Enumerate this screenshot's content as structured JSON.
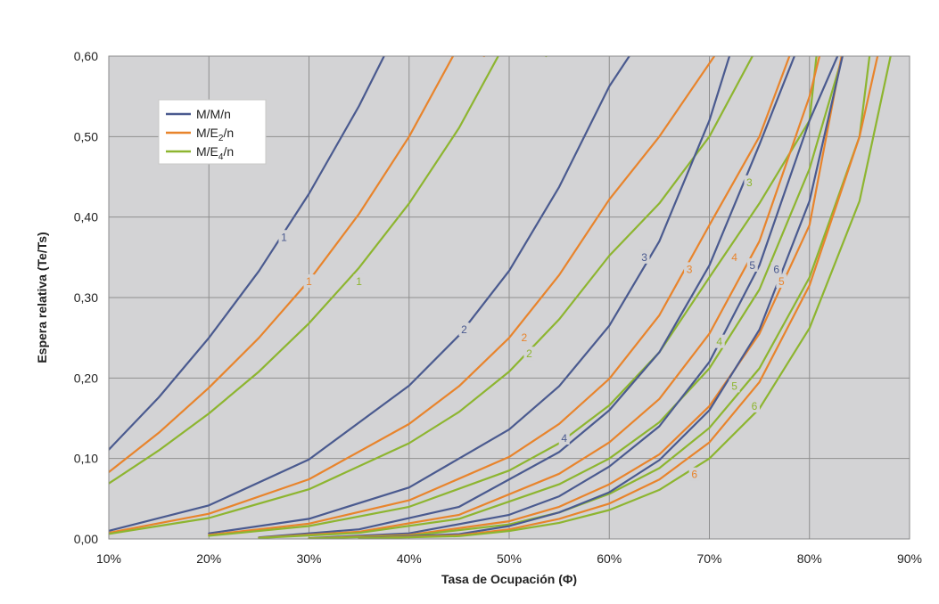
{
  "chart_data": {
    "type": "line",
    "xlabel": "Tasa de Ocupación (Φ)",
    "ylabel": "Espera relativa (Te/Ts)",
    "xlim": [
      10,
      90
    ],
    "ylim": [
      0,
      0.6
    ],
    "x_ticks": [
      "10%",
      "20%",
      "30%",
      "40%",
      "50%",
      "60%",
      "70%",
      "80%",
      "90%"
    ],
    "y_ticks": [
      "0,00",
      "0,10",
      "0,20",
      "0,30",
      "0,40",
      "0,50",
      "0,60"
    ],
    "grid": true,
    "legend_position": "top-left",
    "legend": [
      {
        "text": "M/M/n",
        "sub": "",
        "after": "",
        "color": "#4a5a8f"
      },
      {
        "text": "M/E",
        "sub": "2",
        "after": "/n",
        "color": "#e8842c"
      },
      {
        "text": "M/E",
        "sub": "4",
        "after": "/n",
        "color": "#8db530"
      }
    ],
    "series": [
      {
        "name": "M/M/n",
        "n": "1",
        "color": "#4a5a8f",
        "x": [
          10,
          15,
          20,
          25,
          30,
          35,
          37.5
        ],
        "y": [
          0.111,
          0.176,
          0.25,
          0.333,
          0.429,
          0.538,
          0.6
        ]
      },
      {
        "name": "M/E2/n",
        "n": "1",
        "color": "#e8842c",
        "x": [
          10,
          15,
          20,
          25,
          30,
          35,
          40,
          45,
          47.5
        ],
        "y": [
          0.083,
          0.132,
          0.188,
          0.25,
          0.321,
          0.404,
          0.5,
          0.614,
          0.6
        ]
      },
      {
        "name": "M/E4/n",
        "n": "1",
        "color": "#8db530",
        "x": [
          10,
          15,
          20,
          25,
          30,
          35,
          40,
          45,
          50,
          53.7
        ],
        "y": [
          0.069,
          0.11,
          0.156,
          0.208,
          0.268,
          0.337,
          0.417,
          0.511,
          0.625,
          0.6
        ]
      },
      {
        "name": "M/M/n",
        "n": "2",
        "color": "#4a5a8f",
        "x": [
          10,
          20,
          30,
          40,
          45,
          50,
          55,
          60,
          62
        ],
        "y": [
          0.0101,
          0.0417,
          0.0989,
          0.1905,
          0.2532,
          0.3333,
          0.4375,
          0.5625,
          0.6
        ]
      },
      {
        "name": "M/E2/n",
        "n": "2",
        "color": "#e8842c",
        "x": [
          10,
          20,
          30,
          40,
          45,
          50,
          55,
          60,
          65,
          70.5
        ],
        "y": [
          0.0076,
          0.0313,
          0.0742,
          0.1429,
          0.19,
          0.25,
          0.328,
          0.422,
          0.5,
          0.6
        ]
      },
      {
        "name": "M/E4/n",
        "n": "2",
        "color": "#8db530",
        "x": [
          10,
          20,
          30,
          40,
          45,
          50,
          55,
          60,
          65,
          70,
          74.3
        ],
        "y": [
          0.0063,
          0.026,
          0.0618,
          0.119,
          0.158,
          0.208,
          0.273,
          0.352,
          0.417,
          0.5,
          0.6
        ]
      },
      {
        "name": "M/M/n",
        "n": "3",
        "color": "#4a5a8f",
        "x": [
          20,
          30,
          40,
          50,
          55,
          60,
          65,
          70,
          72
        ],
        "y": [
          0.007,
          0.025,
          0.064,
          0.136,
          0.19,
          0.265,
          0.37,
          0.52,
          0.6
        ]
      },
      {
        "name": "M/E2/n",
        "n": "3",
        "color": "#e8842c",
        "x": [
          20,
          30,
          40,
          50,
          55,
          60,
          65,
          70,
          75,
          78
        ],
        "y": [
          0.005,
          0.019,
          0.048,
          0.102,
          0.143,
          0.199,
          0.278,
          0.39,
          0.5,
          0.6
        ]
      },
      {
        "name": "M/E4/n",
        "n": "3",
        "color": "#8db530",
        "x": [
          20,
          30,
          40,
          50,
          55,
          60,
          65,
          70,
          75,
          80,
          80.7
        ],
        "y": [
          0.004,
          0.016,
          0.04,
          0.085,
          0.119,
          0.166,
          0.232,
          0.325,
          0.417,
          0.52,
          0.6
        ]
      },
      {
        "name": "M/M/n",
        "n": "4",
        "color": "#4a5a8f",
        "x": [
          25,
          35,
          45,
          55,
          60,
          65,
          70,
          75,
          78.5
        ],
        "y": [
          0.002,
          0.012,
          0.04,
          0.108,
          0.16,
          0.232,
          0.34,
          0.49,
          0.6
        ]
      },
      {
        "name": "M/E2/n",
        "n": "4",
        "color": "#e8842c",
        "x": [
          25,
          35,
          45,
          55,
          60,
          65,
          70,
          75,
          80,
          81
        ],
        "y": [
          0.0015,
          0.009,
          0.03,
          0.081,
          0.12,
          0.174,
          0.255,
          0.37,
          0.55,
          0.6
        ]
      },
      {
        "name": "M/E4/n",
        "n": "4",
        "color": "#8db530",
        "x": [
          25,
          35,
          45,
          55,
          60,
          65,
          70,
          75,
          80,
          83.3
        ],
        "y": [
          0.0012,
          0.0075,
          0.025,
          0.068,
          0.1,
          0.145,
          0.212,
          0.31,
          0.46,
          0.6
        ]
      },
      {
        "name": "M/M/n",
        "n": "5",
        "color": "#4a5a8f",
        "x": [
          30,
          40,
          50,
          55,
          60,
          65,
          70,
          75,
          80,
          82.8
        ],
        "y": [
          0.001,
          0.007,
          0.03,
          0.053,
          0.09,
          0.14,
          0.22,
          0.34,
          0.52,
          0.6
        ]
      },
      {
        "name": "M/E2/n",
        "n": "5",
        "color": "#e8842c",
        "x": [
          30,
          40,
          50,
          55,
          60,
          65,
          70,
          75,
          80,
          83.2
        ],
        "y": [
          0.0008,
          0.005,
          0.022,
          0.04,
          0.068,
          0.105,
          0.165,
          0.255,
          0.39,
          0.6
        ]
      },
      {
        "name": "M/E4/n",
        "n": "5",
        "color": "#8db530",
        "x": [
          30,
          40,
          50,
          55,
          60,
          65,
          70,
          75,
          80,
          85,
          86
        ],
        "y": [
          0.0006,
          0.004,
          0.018,
          0.033,
          0.056,
          0.088,
          0.138,
          0.212,
          0.325,
          0.5,
          0.6
        ]
      },
      {
        "name": "M/M/n",
        "n": "6",
        "color": "#4a5a8f",
        "x": [
          35,
          45,
          50,
          55,
          60,
          65,
          70,
          75,
          80,
          83.3
        ],
        "y": [
          0.001,
          0.006,
          0.016,
          0.033,
          0.058,
          0.098,
          0.16,
          0.26,
          0.42,
          0.6
        ]
      },
      {
        "name": "M/E2/n",
        "n": "6",
        "color": "#e8842c",
        "x": [
          35,
          45,
          50,
          55,
          60,
          65,
          70,
          75,
          80,
          85,
          86.8
        ],
        "y": [
          0.0008,
          0.0045,
          0.012,
          0.025,
          0.044,
          0.074,
          0.12,
          0.195,
          0.315,
          0.5,
          0.6
        ]
      },
      {
        "name": "M/E4/n",
        "n": "6",
        "color": "#8db530",
        "x": [
          35,
          45,
          50,
          55,
          60,
          65,
          70,
          75,
          80,
          85,
          88.1
        ],
        "y": [
          0.0006,
          0.0035,
          0.01,
          0.02,
          0.036,
          0.061,
          0.1,
          0.162,
          0.262,
          0.42,
          0.6
        ]
      }
    ],
    "curve_labels": [
      {
        "text": "1",
        "color": "#4a5a8f",
        "x": 27.5,
        "y": 0.375
      },
      {
        "text": "1",
        "color": "#e8842c",
        "x": 30,
        "y": 0.32
      },
      {
        "text": "1",
        "color": "#8db530",
        "x": 35,
        "y": 0.32
      },
      {
        "text": "2",
        "color": "#4a5a8f",
        "x": 45.5,
        "y": 0.26
      },
      {
        "text": "2",
        "color": "#e8842c",
        "x": 51.5,
        "y": 0.25
      },
      {
        "text": "2",
        "color": "#8db530",
        "x": 52,
        "y": 0.23
      },
      {
        "text": "3",
        "color": "#4a5a8f",
        "x": 63.5,
        "y": 0.35
      },
      {
        "text": "3",
        "color": "#e8842c",
        "x": 68,
        "y": 0.335
      },
      {
        "text": "3",
        "color": "#8db530",
        "x": 74,
        "y": 0.443
      },
      {
        "text": "4",
        "color": "#4a5a8f",
        "x": 55.5,
        "y": 0.125
      },
      {
        "text": "4",
        "color": "#e8842c",
        "x": 72.5,
        "y": 0.35
      },
      {
        "text": "4",
        "color": "#8db530",
        "x": 71,
        "y": 0.245
      },
      {
        "text": "5",
        "color": "#4a5a8f",
        "x": 74.3,
        "y": 0.34
      },
      {
        "text": "5",
        "color": "#e8842c",
        "x": 77.2,
        "y": 0.32
      },
      {
        "text": "5",
        "color": "#8db530",
        "x": 72.5,
        "y": 0.19
      },
      {
        "text": "6",
        "color": "#4a5a8f",
        "x": 76.7,
        "y": 0.335
      },
      {
        "text": "6",
        "color": "#e8842c",
        "x": 68.5,
        "y": 0.08
      },
      {
        "text": "6",
        "color": "#8db530",
        "x": 74.5,
        "y": 0.165
      }
    ]
  }
}
